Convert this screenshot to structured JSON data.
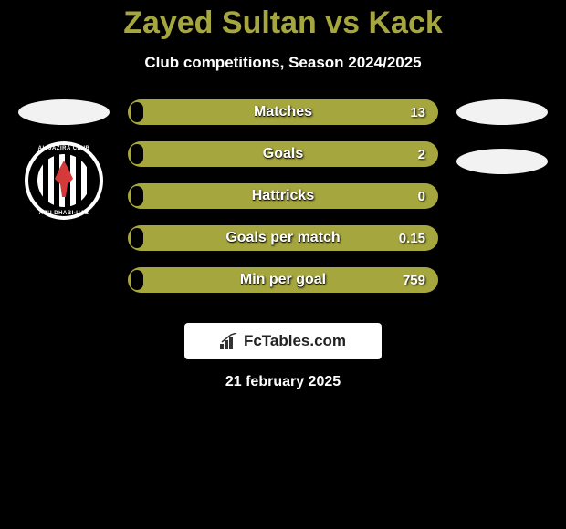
{
  "title": "Zayed Sultan vs Kack",
  "subtitle": "Club competitions, Season 2024/2025",
  "date": "21 february 2025",
  "colors": {
    "accent": "#a6a63e",
    "background": "#000000",
    "ellipse": "#f2f2f2",
    "logo_bg": "#ffffff",
    "text": "#ffffff"
  },
  "left_player": {
    "club": {
      "top_text": "AL-JAZIRA CLUB",
      "bottom_text": "ABU DHABI-UAE",
      "ring_color": "#000000",
      "outer_color": "#ffffff",
      "figure_color": "#d43a3a"
    }
  },
  "right_player": {
    "ellipses": 2
  },
  "stats": [
    {
      "label": "Matches",
      "value": "13",
      "fill_pct": 4
    },
    {
      "label": "Goals",
      "value": "2",
      "fill_pct": 4
    },
    {
      "label": "Hattricks",
      "value": "0",
      "fill_pct": 4
    },
    {
      "label": "Goals per match",
      "value": "0.15",
      "fill_pct": 4
    },
    {
      "label": "Min per goal",
      "value": "759",
      "fill_pct": 4
    }
  ],
  "logo": {
    "text": "FcTables.com"
  }
}
